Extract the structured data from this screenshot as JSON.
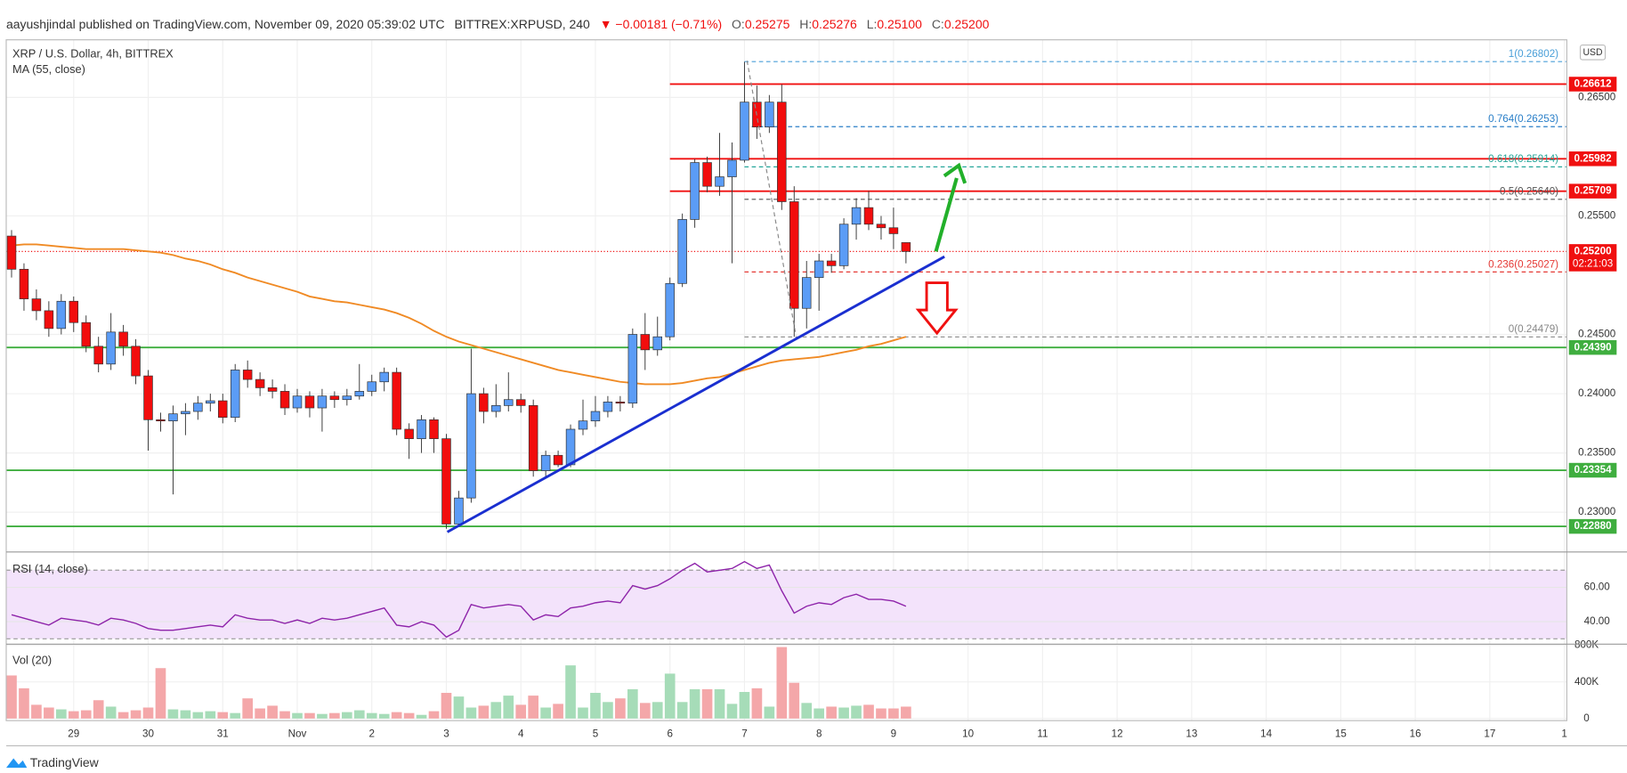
{
  "header": {
    "publisher": "aayushjindal published on TradingView.com, November 09, 2020 05:39:02 UTC",
    "symbol": "BITTREX:XRPUSD, 240",
    "change": "▼ −0.00181 (−0.71%)",
    "ohlc": [
      {
        "label": "O:",
        "value": "0.25275"
      },
      {
        "label": "H:",
        "value": "0.25276"
      },
      {
        "label": "L:",
        "value": "0.25100"
      },
      {
        "label": "C:",
        "value": "0.25200"
      }
    ]
  },
  "footer": "TradingView",
  "chart_data": [
    {
      "type": "candlestick",
      "title": "XRP / U.S. Dollar, 4h, BITTREX",
      "currency": "USD",
      "up_color": "#5b9cf6",
      "down_color": "#f20d0d",
      "x": [
        1,
        2,
        3,
        4,
        5,
        6,
        7,
        8,
        9,
        10,
        11,
        12,
        13,
        14,
        15,
        16,
        17,
        18,
        19,
        20,
        21,
        22,
        23,
        24,
        25,
        26,
        27,
        28,
        29,
        30,
        31,
        32,
        33,
        34,
        35,
        36,
        37,
        38,
        39,
        40,
        41,
        42,
        43,
        44,
        45,
        46,
        47,
        48,
        49,
        50,
        51,
        52,
        53,
        54,
        55,
        56,
        57,
        58,
        59,
        60,
        61,
        62,
        63,
        64,
        65,
        66,
        67,
        68,
        69,
        70,
        71,
        72,
        73
      ],
      "open": [
        0.2533,
        0.2505,
        0.248,
        0.247,
        0.2455,
        0.2478,
        0.246,
        0.244,
        0.2425,
        0.2452,
        0.244,
        0.2415,
        0.2378,
        0.2377,
        0.2383,
        0.2385,
        0.2392,
        0.2394,
        0.238,
        0.242,
        0.2412,
        0.2405,
        0.2402,
        0.2388,
        0.2398,
        0.2388,
        0.2398,
        0.2395,
        0.2398,
        0.2402,
        0.241,
        0.2418,
        0.237,
        0.2362,
        0.2378,
        0.2362,
        0.229,
        0.2312,
        0.24,
        0.2385,
        0.239,
        0.2395,
        0.239,
        0.2335,
        0.2348,
        0.234,
        0.237,
        0.2377,
        0.2385,
        0.2393,
        0.2392,
        0.245,
        0.2437,
        0.2448,
        0.2493,
        0.2547,
        0.2595,
        0.2575,
        0.2583,
        0.2597,
        0.2646,
        0.2625,
        0.2646,
        0.2562,
        0.2472,
        0.2498,
        0.2512,
        0.2508,
        0.2543,
        0.2557,
        0.2543,
        0.254,
        0.25275
      ],
      "high": [
        0.2538,
        0.251,
        0.2488,
        0.2478,
        0.2484,
        0.2482,
        0.2466,
        0.2448,
        0.2468,
        0.2458,
        0.2446,
        0.242,
        0.2384,
        0.239,
        0.2392,
        0.2398,
        0.24,
        0.24,
        0.2425,
        0.2428,
        0.2418,
        0.2412,
        0.2408,
        0.2404,
        0.2402,
        0.2404,
        0.2402,
        0.2404,
        0.2425,
        0.2416,
        0.2422,
        0.2422,
        0.2375,
        0.2382,
        0.238,
        0.2366,
        0.2318,
        0.2438,
        0.2405,
        0.2408,
        0.2418,
        0.24,
        0.2395,
        0.2352,
        0.2352,
        0.2374,
        0.2395,
        0.2398,
        0.2398,
        0.2398,
        0.2455,
        0.2468,
        0.2465,
        0.2498,
        0.2552,
        0.2598,
        0.26,
        0.262,
        0.2612,
        0.268,
        0.266,
        0.2652,
        0.2661,
        0.2575,
        0.2512,
        0.2518,
        0.2518,
        0.2548,
        0.2565,
        0.2571,
        0.255,
        0.2557,
        0.25276
      ],
      "low": [
        0.2498,
        0.247,
        0.2462,
        0.2448,
        0.245,
        0.2452,
        0.2435,
        0.2418,
        0.242,
        0.2432,
        0.2408,
        0.2352,
        0.2368,
        0.2315,
        0.2365,
        0.2378,
        0.2385,
        0.2375,
        0.2376,
        0.2405,
        0.2398,
        0.2396,
        0.2382,
        0.2384,
        0.238,
        0.2368,
        0.2388,
        0.239,
        0.2395,
        0.2398,
        0.2402,
        0.2365,
        0.2345,
        0.235,
        0.235,
        0.2286,
        0.2288,
        0.2308,
        0.2375,
        0.238,
        0.2385,
        0.2384,
        0.233,
        0.233,
        0.2338,
        0.2338,
        0.2365,
        0.2372,
        0.238,
        0.2385,
        0.2388,
        0.242,
        0.2432,
        0.2445,
        0.249,
        0.254,
        0.257,
        0.2567,
        0.251,
        0.2595,
        0.2615,
        0.262,
        0.2555,
        0.2448,
        0.2455,
        0.247,
        0.2502,
        0.2505,
        0.253,
        0.2538,
        0.253,
        0.2522,
        0.251
      ],
      "close": [
        0.2505,
        0.248,
        0.247,
        0.2455,
        0.2478,
        0.246,
        0.244,
        0.2425,
        0.2452,
        0.244,
        0.2415,
        0.2378,
        0.2377,
        0.2383,
        0.2385,
        0.2392,
        0.2394,
        0.238,
        0.242,
        0.2412,
        0.2405,
        0.2402,
        0.2388,
        0.2398,
        0.2388,
        0.2398,
        0.2395,
        0.2398,
        0.2402,
        0.241,
        0.2418,
        0.237,
        0.2362,
        0.2378,
        0.2362,
        0.229,
        0.2312,
        0.24,
        0.2385,
        0.239,
        0.2395,
        0.239,
        0.2335,
        0.2348,
        0.234,
        0.237,
        0.2377,
        0.2385,
        0.2393,
        0.2392,
        0.245,
        0.2437,
        0.2448,
        0.2493,
        0.2547,
        0.2595,
        0.2575,
        0.2583,
        0.2597,
        0.2646,
        0.2625,
        0.2646,
        0.2562,
        0.2472,
        0.2498,
        0.2512,
        0.2508,
        0.2543,
        0.2557,
        0.2543,
        0.254,
        0.2535,
        0.252
      ],
      "ma": {
        "name": "MA (55, close)",
        "color": "#f08a24",
        "values": [
          0.2525,
          0.2526,
          0.2526,
          0.2525,
          0.2524,
          0.2523,
          0.2522,
          0.2522,
          0.2522,
          0.2522,
          0.2521,
          0.252,
          0.2519,
          0.2517,
          0.2514,
          0.2512,
          0.2509,
          0.2505,
          0.2502,
          0.2498,
          0.2495,
          0.2492,
          0.2489,
          0.2486,
          0.2482,
          0.248,
          0.2478,
          0.2477,
          0.2475,
          0.2473,
          0.2471,
          0.2468,
          0.2464,
          0.2459,
          0.2453,
          0.2448,
          0.2444,
          0.2441,
          0.2438,
          0.2435,
          0.2432,
          0.2429,
          0.2426,
          0.2423,
          0.242,
          0.2418,
          0.2416,
          0.2414,
          0.2412,
          0.241,
          0.2409,
          0.2408,
          0.2408,
          0.2408,
          0.2409,
          0.2411,
          0.2413,
          0.2414,
          0.2417,
          0.242,
          0.2423,
          0.2426,
          0.2428,
          0.2429,
          0.243,
          0.2431,
          0.2433,
          0.2435,
          0.2437,
          0.244,
          0.2442,
          0.2445,
          0.2448
        ]
      },
      "xlim": [
        0.57,
        126.2
      ],
      "xticks": [
        {
          "value": 6,
          "label": "29"
        },
        {
          "value": 12,
          "label": "30"
        },
        {
          "value": 18,
          "label": "31"
        },
        {
          "value": 24,
          "label": "Nov"
        },
        {
          "value": 30,
          "label": "2"
        },
        {
          "value": 36,
          "label": "3"
        },
        {
          "value": 42,
          "label": "4"
        },
        {
          "value": 48,
          "label": "5"
        },
        {
          "value": 54,
          "label": "6"
        },
        {
          "value": 60,
          "label": "7"
        },
        {
          "value": 66,
          "label": "8"
        },
        {
          "value": 72,
          "label": "9"
        },
        {
          "value": 78,
          "label": "10"
        },
        {
          "value": 84,
          "label": "11"
        },
        {
          "value": 90,
          "label": "12"
        },
        {
          "value": 96,
          "label": "13"
        },
        {
          "value": 102,
          "label": "14"
        },
        {
          "value": 108,
          "label": "15"
        },
        {
          "value": 114,
          "label": "16"
        },
        {
          "value": 120,
          "label": "17"
        },
        {
          "value": 126,
          "label": "1"
        }
      ],
      "ylim": [
        0.22673,
        0.26986
      ],
      "yticks": [
        {
          "value": 0.265,
          "label": "0.26500"
        },
        {
          "value": 0.255,
          "label": "0.25500"
        },
        {
          "value": 0.245,
          "label": "0.24500"
        },
        {
          "value": 0.24,
          "label": "0.24000"
        },
        {
          "value": 0.235,
          "label": "0.23500"
        },
        {
          "value": 0.23,
          "label": "0.23000"
        }
      ],
      "grid": true,
      "levels": [
        {
          "value": 0.26612,
          "label": "0.26612",
          "color": "#f01010"
        },
        {
          "value": 0.25982,
          "label": "0.25982",
          "color": "#f01010"
        },
        {
          "value": 0.25709,
          "label": "0.25709",
          "color": "#f01010"
        },
        {
          "value": 0.2439,
          "label": "0.24390",
          "color": "#3fae3f"
        },
        {
          "value": 0.23354,
          "label": "0.23354",
          "color": "#3fae3f"
        },
        {
          "value": 0.2288,
          "label": "0.22880",
          "color": "#3fae3f"
        }
      ],
      "fib": [
        {
          "value": 0.26802,
          "label": "1(0.26802)",
          "color": "#4a9fd8"
        },
        {
          "value": 0.26253,
          "label": "0.764(0.26253)",
          "color": "#2a7fc8"
        },
        {
          "value": 0.25914,
          "label": "0.618(0.25914)",
          "color": "#26a69a"
        },
        {
          "value": 0.2564,
          "label": "0.5(0.25640)",
          "color": "#555555"
        },
        {
          "value": 0.25027,
          "label": "0.236(0.25027)",
          "color": "#e53935"
        },
        {
          "value": 0.24479,
          "label": "0(0.24479)",
          "color": "#888888"
        }
      ],
      "last_price": {
        "value": 0.252,
        "label": "0.25200",
        "countdown": "02:21:03",
        "color": "#f01010"
      },
      "trendline": {
        "x": [
          36.08,
          76.1
        ],
        "values": [
          0.22833,
          0.25156
        ],
        "color": "#1a2fd0"
      }
    },
    {
      "type": "line",
      "title": "RSI (14, close)",
      "color": "#8e24aa",
      "values": [
        44,
        42,
        40,
        38,
        42,
        41,
        40,
        38,
        42,
        41,
        39,
        36,
        35,
        35,
        36,
        37,
        38,
        37,
        44,
        42,
        41,
        41,
        39,
        41,
        39,
        42,
        41,
        42,
        44,
        46,
        48,
        38,
        37,
        40,
        38,
        31,
        35,
        50,
        48,
        49,
        50,
        49,
        41,
        44,
        43,
        48,
        49,
        51,
        52,
        51,
        61,
        59,
        61,
        65,
        70,
        74,
        69,
        70,
        71,
        75,
        71,
        73,
        58,
        45,
        49,
        51,
        50,
        54,
        56,
        53,
        53,
        52,
        49
      ],
      "ylim": [
        27.5,
        80
      ],
      "yticks": [
        {
          "value": 40,
          "label": "40.00"
        },
        {
          "value": 60,
          "label": "60.00"
        }
      ],
      "band": [
        30,
        70
      ]
    },
    {
      "type": "bar",
      "title": "Vol (20)",
      "up_color": "#a6dcb8",
      "down_color": "#f4a7a9",
      "values": [
        470000,
        330000,
        150000,
        120000,
        100000,
        80000,
        90000,
        200000,
        130000,
        70000,
        90000,
        120000,
        550000,
        100000,
        90000,
        70000,
        80000,
        70000,
        60000,
        220000,
        110000,
        140000,
        80000,
        60000,
        60000,
        50000,
        60000,
        70000,
        90000,
        60000,
        50000,
        70000,
        60000,
        40000,
        80000,
        280000,
        240000,
        120000,
        140000,
        180000,
        250000,
        150000,
        250000,
        120000,
        160000,
        580000,
        120000,
        280000,
        180000,
        220000,
        320000,
        170000,
        180000,
        490000,
        180000,
        320000,
        320000,
        320000,
        160000,
        290000,
        330000,
        130000,
        780000,
        390000,
        170000,
        110000,
        130000,
        120000,
        140000,
        150000,
        110000,
        110000,
        130000
      ],
      "ylim": [
        0,
        800000
      ],
      "yticks": [
        0,
        {
          "value": 400000,
          "label": "400K"
        },
        {
          "value": 800000,
          "label": "800K"
        }
      ]
    }
  ]
}
